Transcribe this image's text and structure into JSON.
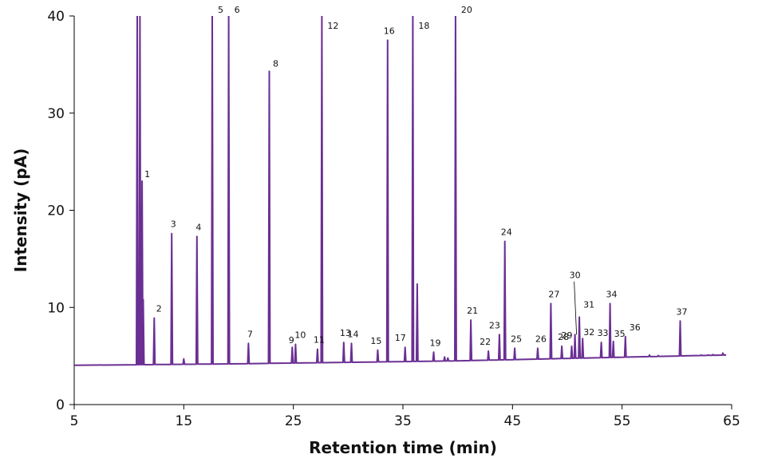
{
  "chart_data": {
    "type": "line",
    "title": "",
    "xlabel": "Retention time (min)",
    "ylabel": "Intensity (pA)",
    "xlim": [
      5,
      65
    ],
    "ylim": [
      0,
      40
    ],
    "x_ticks": [
      "5",
      "15",
      "25",
      "35",
      "45",
      "55",
      "65"
    ],
    "y_ticks": [
      "0",
      "10",
      "20",
      "30",
      "40"
    ],
    "grid": false,
    "legend": "none",
    "line_color": "#6a2f93",
    "baseline": [
      {
        "x": 5.0,
        "y": 4.05
      },
      {
        "x": 10.5,
        "y": 4.1
      },
      {
        "x": 20.0,
        "y": 4.2
      },
      {
        "x": 30.0,
        "y": 4.35
      },
      {
        "x": 40.0,
        "y": 4.5
      },
      {
        "x": 50.0,
        "y": 4.75
      },
      {
        "x": 60.0,
        "y": 5.0
      },
      {
        "x": 64.5,
        "y": 5.1
      }
    ],
    "series": [
      {
        "values": [
          {
            "label": "",
            "x": 10.75,
            "y": 40
          },
          {
            "label": "",
            "x": 11.0,
            "y": 40
          },
          {
            "label": "1",
            "x": 11.2,
            "y": 23
          },
          {
            "label": "",
            "x": 11.3,
            "y": 10.8
          },
          {
            "label": "2",
            "x": 12.3,
            "y": 8.9
          },
          {
            "label": "3",
            "x": 13.9,
            "y": 17.6
          },
          {
            "label": "",
            "x": 15.0,
            "y": 4.7
          },
          {
            "label": "4",
            "x": 16.2,
            "y": 17.3
          },
          {
            "label": "5",
            "x": 17.6,
            "y": 40
          },
          {
            "label": "6",
            "x": 19.1,
            "y": 40
          },
          {
            "label": "7",
            "x": 20.9,
            "y": 6.3
          },
          {
            "label": "8",
            "x": 22.8,
            "y": 34.3
          },
          {
            "label": "9",
            "x": 24.9,
            "y": 5.9
          },
          {
            "label": "10",
            "x": 25.2,
            "y": 6.2
          },
          {
            "label": "11",
            "x": 27.2,
            "y": 5.7
          },
          {
            "label": "12",
            "x": 27.6,
            "y": 40
          },
          {
            "label": "13",
            "x": 29.6,
            "y": 6.4
          },
          {
            "label": "14",
            "x": 30.3,
            "y": 6.3
          },
          {
            "label": "15",
            "x": 32.7,
            "y": 5.6
          },
          {
            "label": "16",
            "x": 33.6,
            "y": 37.5
          },
          {
            "label": "17",
            "x": 35.2,
            "y": 5.9
          },
          {
            "label": "18",
            "x": 35.9,
            "y": 40
          },
          {
            "label": "",
            "x": 36.3,
            "y": 12.4
          },
          {
            "label": "19",
            "x": 37.8,
            "y": 5.4
          },
          {
            "label": "",
            "x": 38.8,
            "y": 4.9
          },
          {
            "label": "",
            "x": 39.1,
            "y": 4.8
          },
          {
            "label": "20",
            "x": 39.8,
            "y": 40
          },
          {
            "label": "21",
            "x": 41.2,
            "y": 8.7
          },
          {
            "label": "22",
            "x": 42.8,
            "y": 5.5
          },
          {
            "label": "23",
            "x": 43.8,
            "y": 7.2
          },
          {
            "label": "24",
            "x": 44.3,
            "y": 16.8
          },
          {
            "label": "25",
            "x": 45.2,
            "y": 5.8
          },
          {
            "label": "26",
            "x": 47.3,
            "y": 5.8
          },
          {
            "label": "27",
            "x": 48.5,
            "y": 10.4
          },
          {
            "label": "28",
            "x": 49.5,
            "y": 6.0
          },
          {
            "label": "29",
            "x": 50.4,
            "y": 6.0
          },
          {
            "label": "30",
            "x": 50.7,
            "y": 7.2
          },
          {
            "label": "31",
            "x": 51.1,
            "y": 9.0
          },
          {
            "label": "32",
            "x": 51.4,
            "y": 6.8
          },
          {
            "label": "33",
            "x": 53.1,
            "y": 6.4
          },
          {
            "label": "34",
            "x": 53.9,
            "y": 10.4
          },
          {
            "label": "35",
            "x": 54.2,
            "y": 6.5
          },
          {
            "label": "36",
            "x": 55.3,
            "y": 7.0
          },
          {
            "label": "",
            "x": 57.5,
            "y": 5.1
          },
          {
            "label": "",
            "x": 58.3,
            "y": 5.05
          },
          {
            "label": "37",
            "x": 60.3,
            "y": 8.6
          },
          {
            "label": "",
            "x": 62.2,
            "y": 5.1
          },
          {
            "label": "",
            "x": 62.8,
            "y": 5.1
          },
          {
            "label": "",
            "x": 63.3,
            "y": 5.15
          },
          {
            "label": "",
            "x": 64.2,
            "y": 5.3
          }
        ]
      }
    ]
  }
}
